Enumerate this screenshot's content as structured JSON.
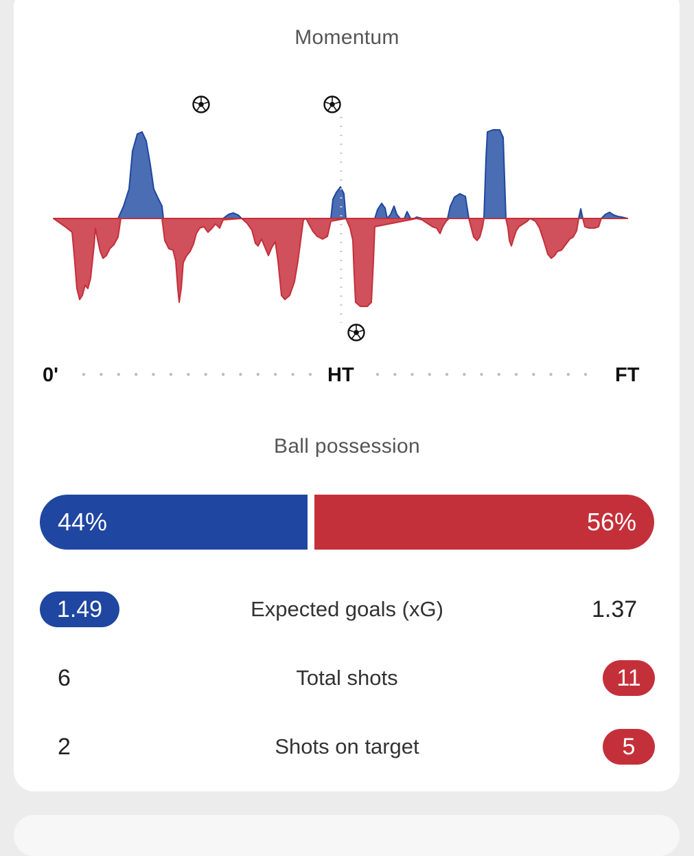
{
  "momentum": {
    "title": "Momentum",
    "axis": {
      "start": "0'",
      "half": "HT",
      "end": "FT"
    },
    "goal_icons": [
      "soccer-ball-icon",
      "soccer-ball-icon",
      "soccer-ball-icon"
    ]
  },
  "possession": {
    "title": "Ball possession",
    "home_label": "44%",
    "away_label": "56%",
    "home_value": 44,
    "away_value": 56
  },
  "stats": [
    {
      "label": "Expected goals (xG)",
      "home": "1.49",
      "away": "1.37",
      "highlight": "home"
    },
    {
      "label": "Total shots",
      "home": "6",
      "away": "11",
      "highlight": "away"
    },
    {
      "label": "Shots on target",
      "home": "2",
      "away": "5",
      "highlight": "away"
    }
  ],
  "colors": {
    "home": "#1f46a0",
    "away": "#c4303a",
    "home_area": "#4a6db3",
    "away_area": "#d0505c"
  }
}
